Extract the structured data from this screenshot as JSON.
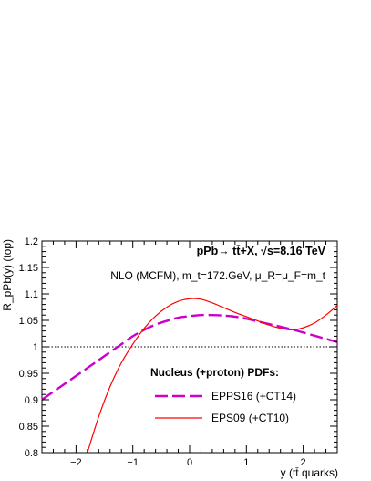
{
  "chart_data": {
    "type": "line",
    "title": "",
    "xlabel": "y (tt̄ quarks)",
    "ylabel": "R_pPb(y) (top)",
    "xlim": [
      -2.6,
      2.6
    ],
    "ylim": [
      0.8,
      1.2
    ],
    "x_ticks": [
      -2,
      -1,
      0,
      1,
      2
    ],
    "y_ticks": [
      0.8,
      0.85,
      0.9,
      0.95,
      1.0,
      1.05,
      1.1,
      1.15,
      1.2
    ],
    "y_tick_labels": [
      "0.8",
      "0.85",
      "0.9",
      "0.95",
      "1",
      "1.05",
      "1.1",
      "1.15",
      "1.2"
    ],
    "grid": false,
    "reference_line": {
      "y": 1.0,
      "style": "dotted"
    },
    "annotations": {
      "process": "pPb→ tt̄+X,  √s=8.16 TeV",
      "calc": "NLO (MCFM), m_t=172.GeV, μ_R=μ_F=m_t"
    },
    "legend_title": "Nucleus (+proton) PDFs:",
    "legend_position": "lower-center",
    "series": [
      {
        "name": "EPPS16 (+CT14)",
        "color": "#cc00cc",
        "style": "dashed",
        "x": [
          -2.6,
          -2.4,
          -2.2,
          -2.0,
          -1.8,
          -1.6,
          -1.4,
          -1.2,
          -1.0,
          -0.8,
          -0.6,
          -0.4,
          -0.2,
          0.0,
          0.2,
          0.4,
          0.6,
          0.8,
          1.0,
          1.2,
          1.4,
          1.6,
          1.8,
          2.0,
          2.2,
          2.4,
          2.6
        ],
        "y": [
          0.9,
          0.915,
          0.93,
          0.945,
          0.96,
          0.975,
          0.99,
          1.005,
          1.02,
          1.032,
          1.042,
          1.049,
          1.055,
          1.058,
          1.06,
          1.06,
          1.059,
          1.057,
          1.053,
          1.048,
          1.043,
          1.038,
          1.033,
          1.027,
          1.021,
          1.015,
          1.009
        ]
      },
      {
        "name": "EPS09 (+CT10)",
        "color": "#ff0000",
        "style": "solid",
        "x": [
          -1.8,
          -1.6,
          -1.4,
          -1.2,
          -1.0,
          -0.8,
          -0.6,
          -0.4,
          -0.2,
          0.0,
          0.2,
          0.4,
          0.6,
          0.8,
          1.0,
          1.2,
          1.4,
          1.6,
          1.8,
          2.0,
          2.2,
          2.4,
          2.6
        ],
        "y": [
          0.8,
          0.868,
          0.925,
          0.97,
          1.005,
          1.035,
          1.058,
          1.075,
          1.086,
          1.091,
          1.09,
          1.083,
          1.074,
          1.065,
          1.057,
          1.049,
          1.041,
          1.035,
          1.032,
          1.036,
          1.045,
          1.06,
          1.078
        ]
      }
    ]
  }
}
